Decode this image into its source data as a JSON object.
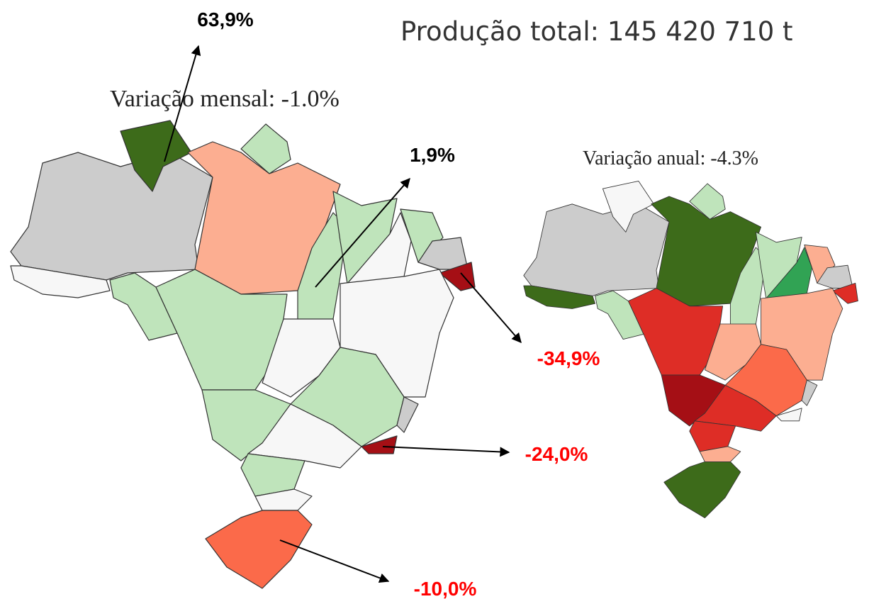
{
  "header": {
    "total": "Produção total: 145 420 710 t"
  },
  "maps": [
    {
      "title": "Variação mensal: -1.0%",
      "callouts": [
        "63,9%",
        "1,9%",
        "-34,9%",
        "-24,0%",
        "-10,0%"
      ]
    },
    {
      "title": "Variação anual: -4.3%"
    }
  ]
}
